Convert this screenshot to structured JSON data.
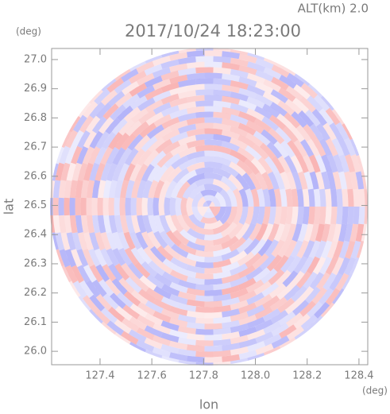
{
  "chart_data": {
    "type": "ppi",
    "title": "2017/10/24 18:23:00",
    "altitude_label": "ALT(km) 2.0",
    "x_label": "lon",
    "x_unit": "(deg)",
    "y_label": "lat",
    "y_unit": "(deg)",
    "xlim": [
      127.213,
      128.434
    ],
    "ylim": [
      25.954,
      27.038
    ],
    "xticks": [
      127.4,
      127.6,
      127.8,
      {
        "value": 128,
        "label": "128.0"
      },
      128.2,
      128.4
    ],
    "yticks": [
      {
        "value": 26,
        "label": "26.0"
      },
      26.1,
      26.2,
      26.3,
      26.4,
      26.5,
      26.6,
      26.7,
      26.8,
      26.9,
      {
        "value": 27,
        "label": "27.0"
      }
    ]
  }
}
